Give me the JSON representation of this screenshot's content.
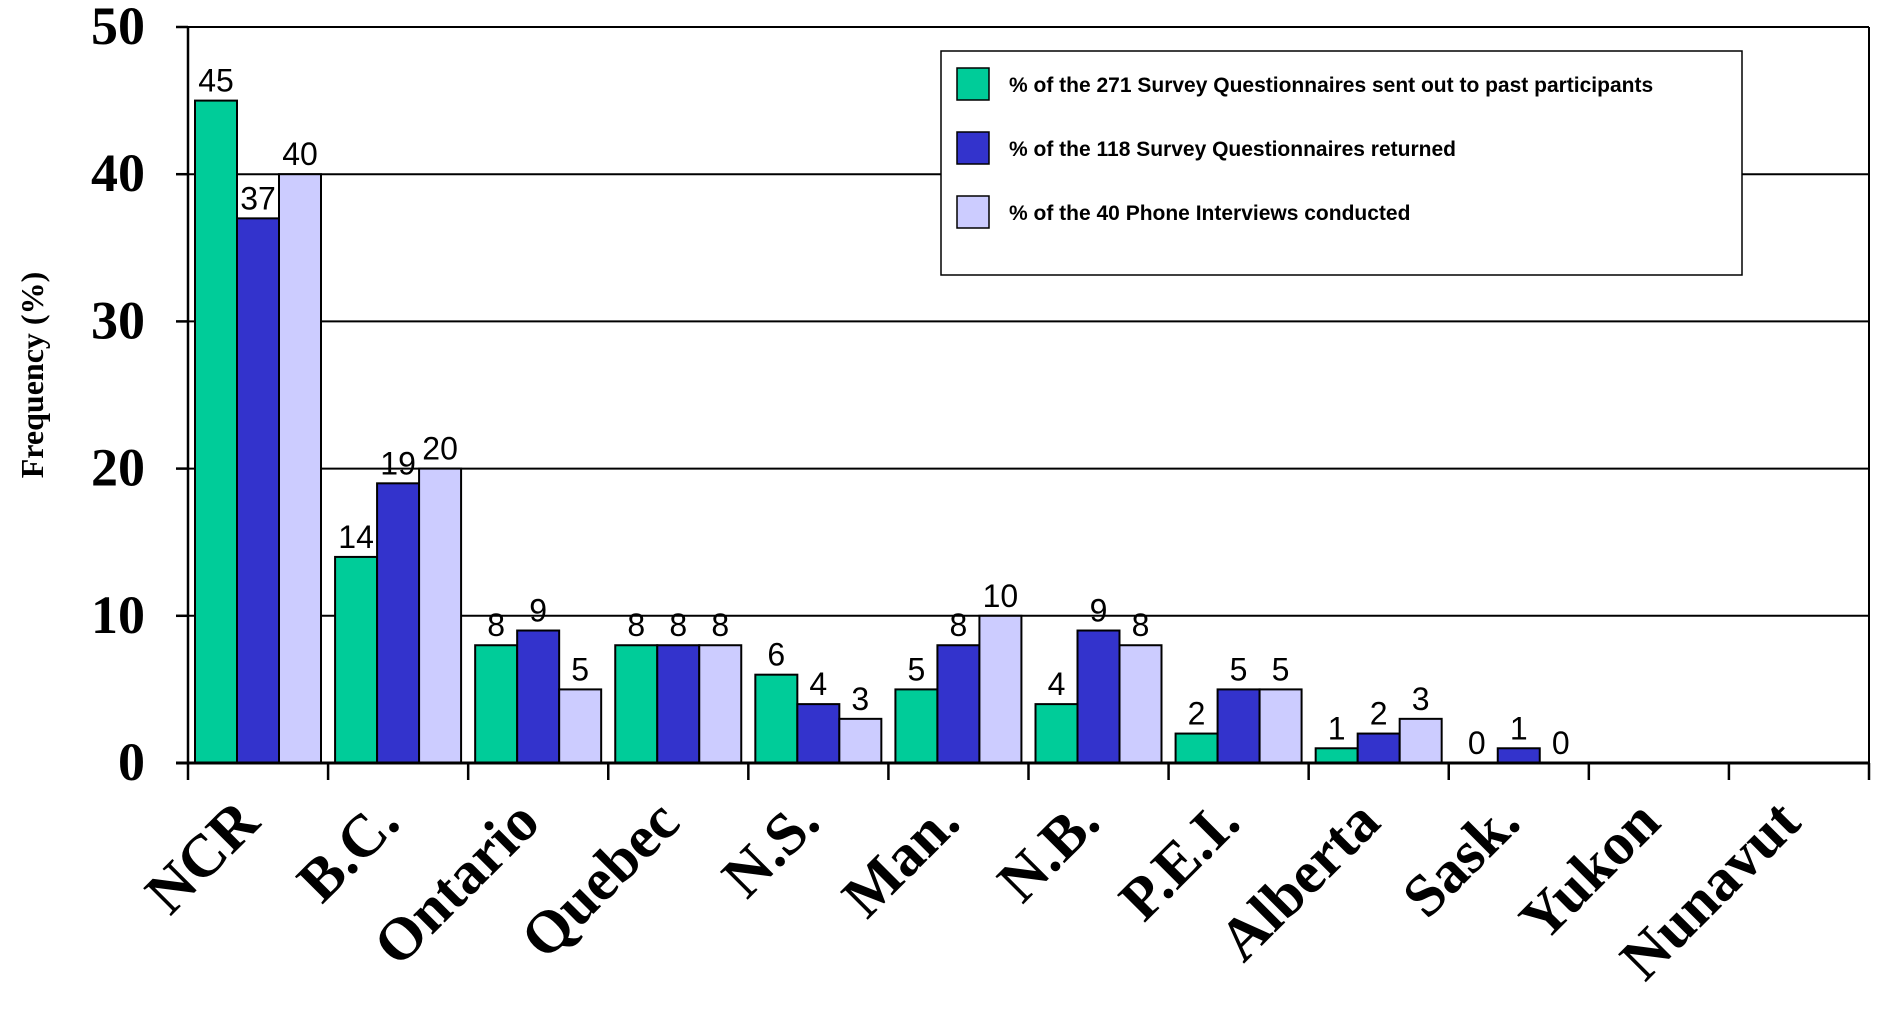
{
  "chart_data": {
    "type": "bar",
    "title": "",
    "xlabel": "",
    "ylabel": "Frequency (%)",
    "ylim": [
      0,
      50
    ],
    "yticks": [
      "0",
      "10",
      "20",
      "30",
      "40",
      "50"
    ],
    "grid": true,
    "legend_position": "top-right",
    "categories": [
      "NCR",
      "B.C.",
      "Ontario",
      "Quebec",
      "N.S.",
      "Man.",
      "N.B.",
      "P.E.I.",
      "Alberta",
      "Sask.",
      "Yukon",
      "Nunavut"
    ],
    "series": [
      {
        "name": "% of the 271 Survey Questionnaires sent out to past participants",
        "color": "#00CC99",
        "values": [
          45,
          14,
          8,
          8,
          6,
          5,
          4,
          2,
          1,
          0,
          null,
          null
        ]
      },
      {
        "name": "% of the 118 Survey Questionnaires returned",
        "color": "#3333CC",
        "values": [
          37,
          19,
          9,
          8,
          4,
          8,
          9,
          5,
          2,
          1,
          null,
          null
        ]
      },
      {
        "name": "% of the 40 Phone Interviews conducted",
        "color": "#CCCCFF",
        "values": [
          40,
          20,
          5,
          8,
          3,
          10,
          8,
          5,
          3,
          0,
          null,
          null
        ]
      }
    ]
  }
}
